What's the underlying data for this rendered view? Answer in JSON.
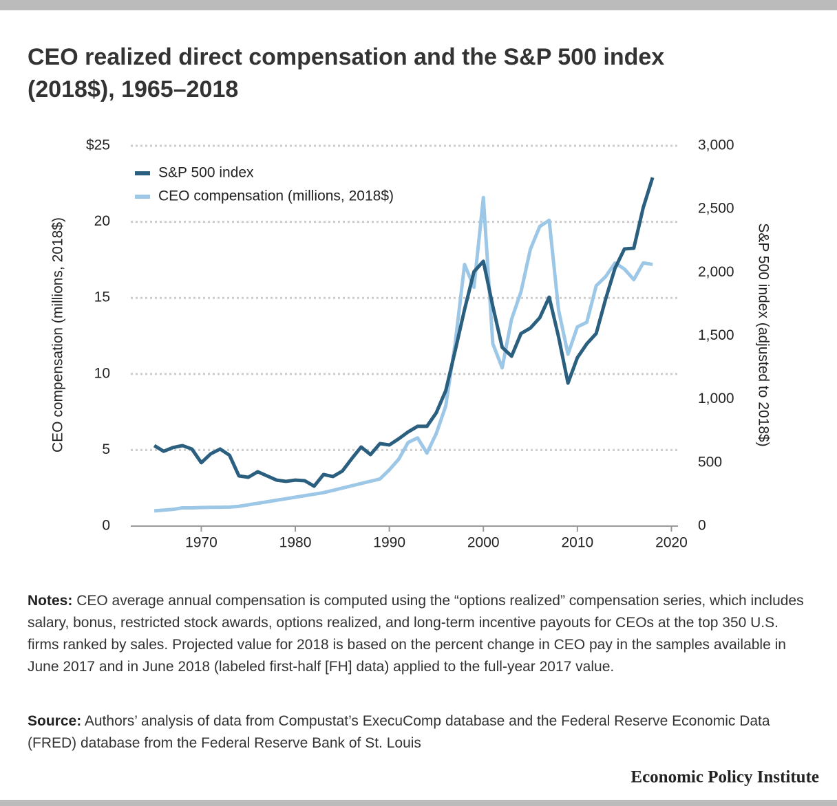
{
  "chart_data": {
    "type": "line",
    "title": "CEO realized direct compensation and the S&P 500 index (2018$), 1965–2018",
    "y_label": "CEO compensation (millions, 2018$)",
    "y2_label": "S&P 500 index (adjusted to 2018$)",
    "x": [
      1965,
      1966,
      1967,
      1968,
      1969,
      1970,
      1971,
      1972,
      1973,
      1974,
      1975,
      1976,
      1977,
      1978,
      1979,
      1980,
      1981,
      1982,
      1983,
      1984,
      1985,
      1986,
      1987,
      1988,
      1989,
      1990,
      1991,
      1992,
      1993,
      1994,
      1995,
      1996,
      1997,
      1998,
      1999,
      2000,
      2001,
      2002,
      2003,
      2004,
      2005,
      2006,
      2007,
      2008,
      2009,
      2010,
      2011,
      2012,
      2013,
      2014,
      2015,
      2016,
      2017,
      2018
    ],
    "series": [
      {
        "name": "S&P 500 index",
        "color": "#2a5f7f",
        "axis": "y2",
        "values": [
          635,
          590,
          620,
          635,
          608,
          500,
          570,
          608,
          559,
          396,
          385,
          429,
          396,
          363,
          353,
          363,
          358,
          315,
          407,
          391,
          434,
          532,
          624,
          564,
          651,
          640,
          689,
          743,
          787,
          787,
          895,
          1069,
          1383,
          1709,
          2007,
          2089,
          1736,
          1410,
          1340,
          1519,
          1562,
          1644,
          1806,
          1492,
          1128,
          1329,
          1438,
          1519,
          1790,
          2034,
          2186,
          2192,
          2512,
          2750
        ]
      },
      {
        "name": "CEO compensation (millions, 2018$)",
        "color": "#9dc7e6",
        "values": [
          1.0,
          1.05,
          1.1,
          1.2,
          1.2,
          1.22,
          1.23,
          1.24,
          1.25,
          1.3,
          1.4,
          1.5,
          1.6,
          1.7,
          1.8,
          1.9,
          2.0,
          2.1,
          2.2,
          2.35,
          2.5,
          2.65,
          2.8,
          2.95,
          3.1,
          3.7,
          4.4,
          5.5,
          5.8,
          4.8,
          6.1,
          7.9,
          12.0,
          17.2,
          15.7,
          21.6,
          12.0,
          10.4,
          13.6,
          15.4,
          18.2,
          19.7,
          20.1,
          14.2,
          11.3,
          13.1,
          13.4,
          15.8,
          16.4,
          17.3,
          16.9,
          16.2,
          17.3,
          17.2
        ]
      }
    ],
    "xlim": [
      1962.5,
      2020.7
    ],
    "xticks": [
      1970,
      1980,
      1990,
      2000,
      2010,
      2020
    ],
    "ylim": [
      0,
      25
    ],
    "yticks": [
      0,
      5,
      10,
      15,
      20,
      {
        "value": 25,
        "label": "$25"
      }
    ],
    "y2lim": [
      0,
      3000
    ],
    "y2ticks": [
      0,
      500,
      {
        "value": 1000,
        "label": "1,000"
      },
      {
        "value": 1500,
        "label": "1,500"
      },
      {
        "value": 2000,
        "label": "2,000"
      },
      {
        "value": 2500,
        "label": "2,500"
      },
      {
        "value": 3000,
        "label": "3,000"
      }
    ],
    "grid": true,
    "legend": "top-left"
  },
  "notes": {
    "label": "Notes:",
    "text": "CEO average annual compensation is computed using the “options realized” compensation series, which includes salary, bonus, restricted stock awards, options realized, and long-term incentive payouts for CEOs at the top 350 U.S. firms ranked by sales. Projected value for 2018 is based on the percent change in CEO pay in the samples available in June 2017 and in June 2018 (labeled first-half [FH] data) applied to the full-year 2017 value."
  },
  "source": {
    "label": "Source:",
    "text": "Authors’ analysis of data from Compustat’s ExecuComp database and the Federal Reserve Economic Data (FRED) database from the Federal Reserve Bank of St. Louis"
  },
  "footer": "Economic Policy Institute"
}
